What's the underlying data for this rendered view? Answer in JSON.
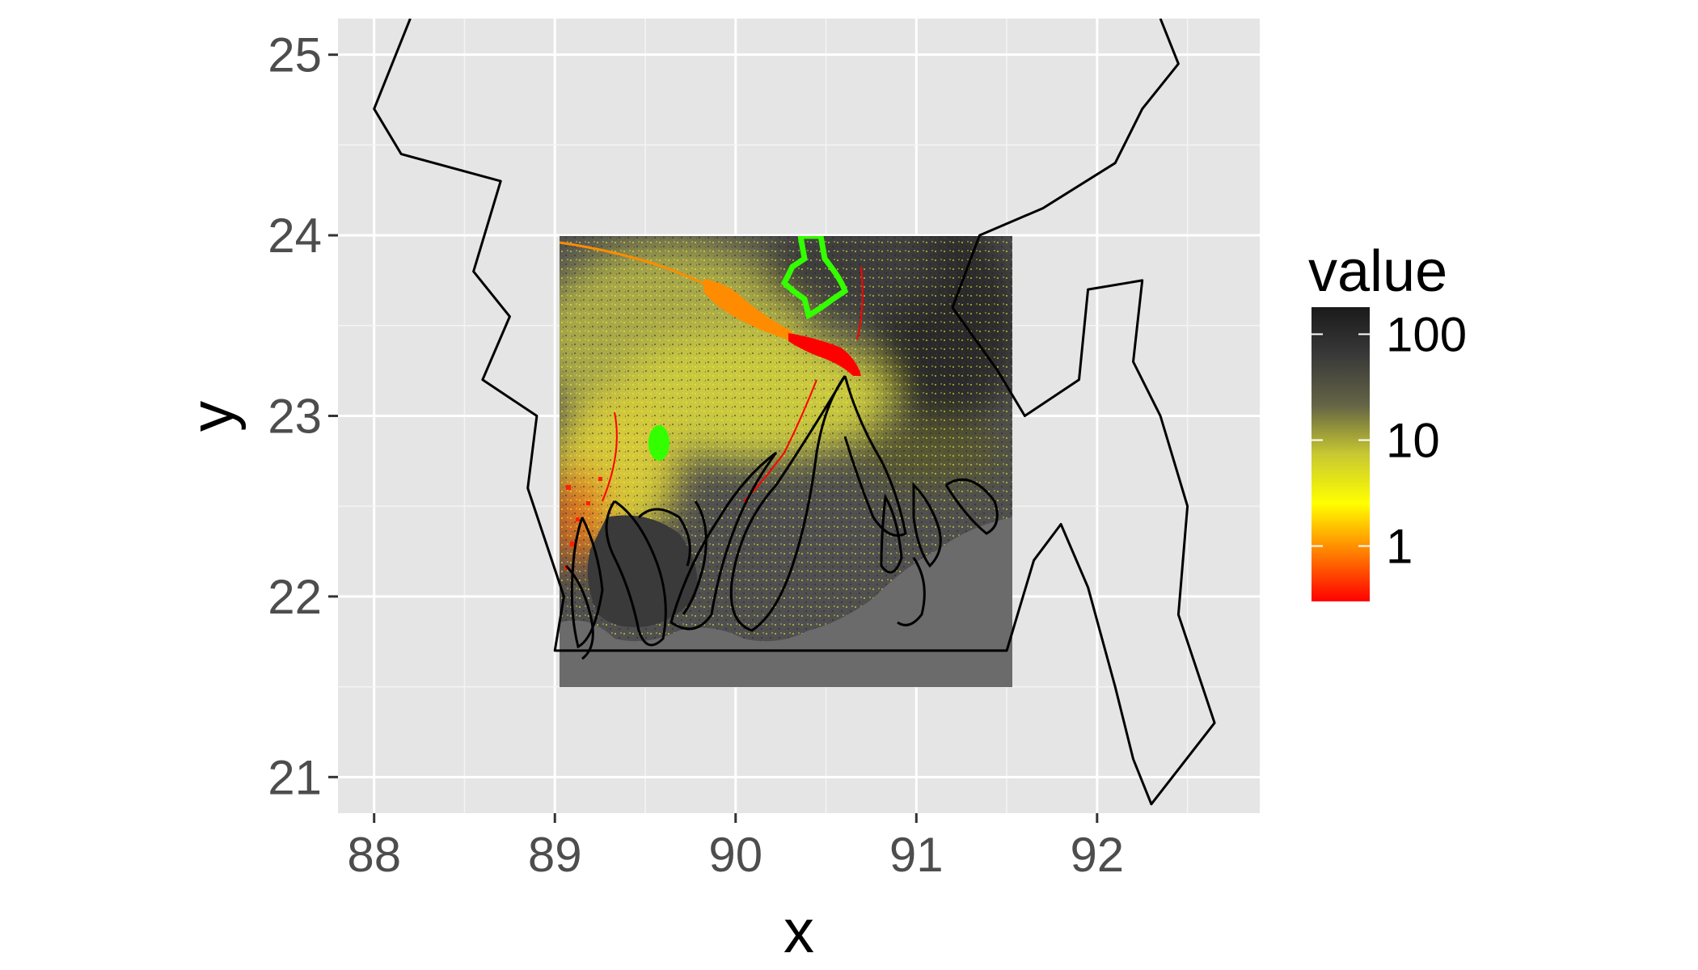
{
  "chart_data": {
    "type": "heatmap",
    "title": "",
    "xlabel": "x",
    "ylabel": "y",
    "xlim": [
      87.8,
      92.9
    ],
    "ylim": [
      20.8,
      25.2
    ],
    "x_ticks": [
      88,
      89,
      90,
      91,
      92
    ],
    "x_tick_labels": [
      "88",
      "89",
      "90",
      "91",
      "92"
    ],
    "y_ticks": [
      21,
      22,
      23,
      24,
      25
    ],
    "y_tick_labels": [
      "21",
      "22",
      "23",
      "24",
      "25"
    ],
    "grid": true,
    "panel_background": "#e5e5e5",
    "raster_extent": {
      "xmin": 89.0,
      "xmax": 91.5,
      "ymin": 21.5,
      "ymax": 24.0
    },
    "legend": {
      "title": "value",
      "position": "right",
      "scale": "log",
      "breaks": [
        1,
        10,
        100
      ],
      "break_labels": [
        "1",
        "10",
        "100"
      ],
      "range": [
        0.3,
        180
      ],
      "colors": [
        "#ff0000",
        "#ff8000",
        "#ffff00",
        "#c8c832",
        "#646446",
        "#3a3a3a",
        "#1a1a1a"
      ]
    },
    "overlays": [
      {
        "name": "country-boundary",
        "color": "#000000"
      },
      {
        "name": "coastline-delta",
        "color": "#000000"
      },
      {
        "name": "river-orange",
        "color": "#ff8c00"
      },
      {
        "name": "river-red",
        "color": "#ff0000"
      },
      {
        "name": "region-outline-green",
        "color": "#33ff00"
      },
      {
        "name": "region-patch-green",
        "color": "#33ff00"
      }
    ],
    "boundary_path": [
      [
        88.2,
        25.2
      ],
      [
        88.0,
        24.7
      ],
      [
        88.15,
        24.45
      ],
      [
        88.7,
        24.3
      ],
      [
        88.55,
        23.8
      ],
      [
        88.75,
        23.55
      ],
      [
        88.6,
        23.2
      ],
      [
        88.9,
        23.0
      ],
      [
        88.85,
        22.6
      ],
      [
        89.05,
        22.0
      ],
      [
        89.0,
        21.7
      ],
      [
        91.5,
        21.7
      ],
      [
        91.65,
        22.2
      ],
      [
        91.8,
        22.4
      ],
      [
        91.95,
        22.05
      ],
      [
        92.1,
        21.5
      ],
      [
        92.2,
        21.1
      ],
      [
        92.3,
        20.85
      ],
      [
        92.65,
        21.3
      ],
      [
        92.45,
        21.9
      ],
      [
        92.5,
        22.5
      ],
      [
        92.35,
        23.0
      ],
      [
        92.2,
        23.3
      ],
      [
        92.25,
        23.75
      ],
      [
        91.95,
        23.7
      ],
      [
        91.9,
        23.2
      ],
      [
        91.6,
        23.0
      ],
      [
        91.45,
        23.25
      ],
      [
        91.2,
        23.6
      ],
      [
        91.35,
        24.0
      ],
      [
        91.7,
        24.15
      ],
      [
        92.1,
        24.4
      ],
      [
        92.25,
        24.7
      ],
      [
        92.45,
        24.95
      ],
      [
        92.35,
        25.2
      ]
    ]
  }
}
